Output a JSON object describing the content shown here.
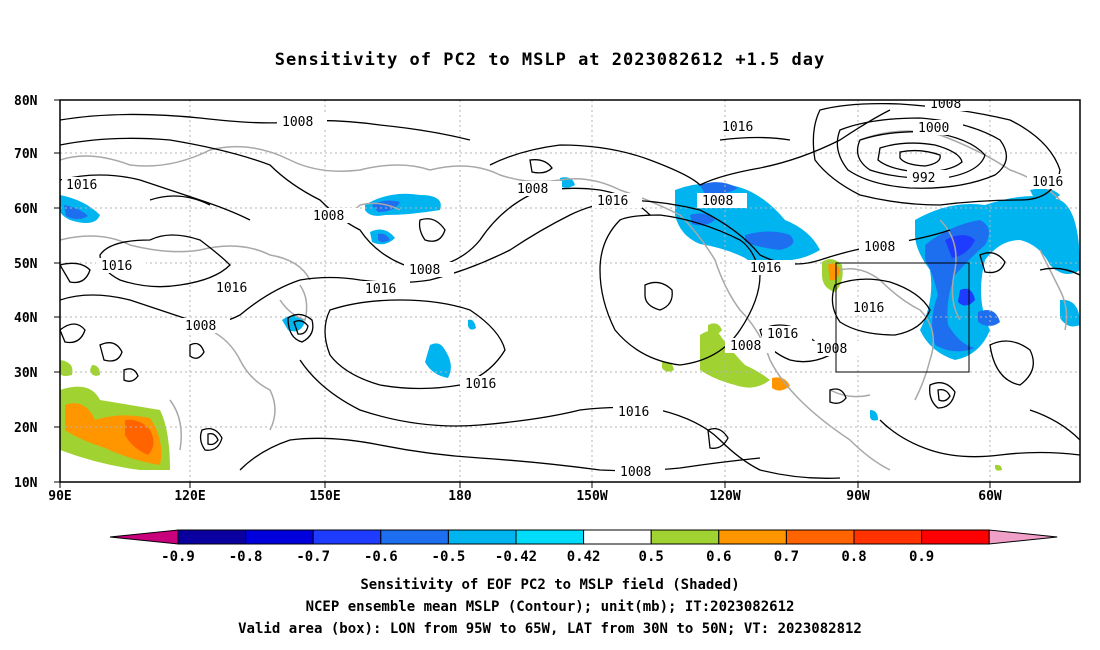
{
  "title": "Sensitivity of PC2 to MSLP at 2023082612 +1.5 day",
  "axes": {
    "lat_labels": [
      "80N",
      "70N",
      "60N",
      "50N",
      "40N",
      "30N",
      "20N",
      "10N"
    ],
    "lon_labels": [
      "90E",
      "120E",
      "150E",
      "180",
      "150W",
      "120W",
      "90W",
      "60W"
    ],
    "lat_range": [
      10,
      80
    ],
    "lon_range": [
      "90E",
      "45W"
    ],
    "grid": "dotted"
  },
  "contour_labels": [
    "1008",
    "1016",
    "1000",
    "992"
  ],
  "colorbar": {
    "ticks": [
      "-0.9",
      "-0.8",
      "-0.7",
      "-0.6",
      "-0.5",
      "-0.42",
      "0.42",
      "0.5",
      "0.6",
      "0.7",
      "0.8",
      "0.9"
    ],
    "colors": [
      "#c8007c",
      "#0a00a0",
      "#0000dc",
      "#1e3cff",
      "#1e6ef0",
      "#00b4f0",
      "#00dcfa",
      "#ffffff",
      "#a0d232",
      "#ff9600",
      "#ff6400",
      "#ff3200",
      "#ff0000",
      "#f0a0c8"
    ]
  },
  "valid_box": {
    "lon": [
      "95W",
      "65W"
    ],
    "lat": [
      "30N",
      "50N"
    ]
  },
  "notes": [
    "Sensitivity of EOF PC2 to MSLP field (Shaded)",
    "NCEP ensemble mean MSLP (Contour); unit(mb); IT:2023082612",
    "Valid area (box): LON from 95W to 65W, LAT from 30N to 50N; VT: 2023082812"
  ]
}
